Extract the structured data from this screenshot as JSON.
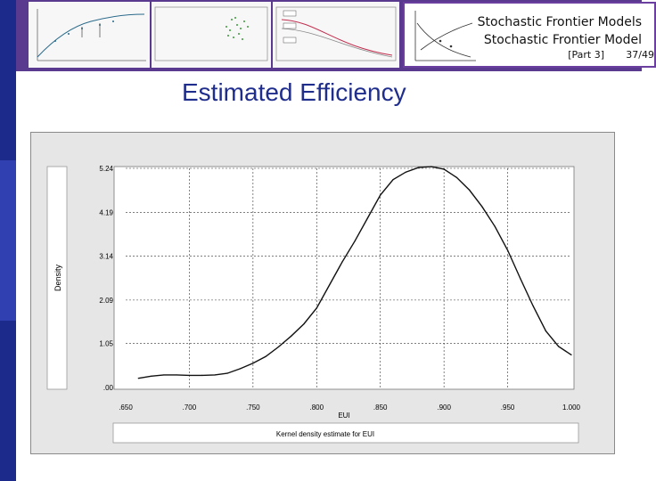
{
  "header": {
    "title_line1": "Stochastic Frontier Models",
    "title_line2": "Stochastic Frontier Model",
    "part": "[Part 3]",
    "page": "37/49"
  },
  "slide_title": "Estimated Efficiency",
  "colors": {
    "accent": "#1f2d8c",
    "bar": "#1c2a8c",
    "frame": "#5a3a8e"
  },
  "chart_data": {
    "type": "line",
    "xlabel": "EUI",
    "ylabel": "Density",
    "x_tick_labels": [
      ".650",
      ".700",
      ".750",
      ".800",
      ".850",
      ".900",
      ".950",
      "1.000"
    ],
    "y_tick_labels": [
      ".00",
      "1.05",
      "2.09",
      "3.14",
      "4.19",
      "5.24"
    ],
    "x_ticks": [
      0.65,
      0.7,
      0.75,
      0.8,
      0.85,
      0.9,
      0.95,
      1.0
    ],
    "y_ticks": [
      0,
      1.05,
      2.09,
      3.14,
      4.19,
      5.24
    ],
    "xlim": [
      0.65,
      1.0
    ],
    "ylim": [
      0,
      5.24
    ],
    "grid": true,
    "caption": "Kernel density estimate for EUI",
    "series": [
      {
        "x": [
          0.66,
          0.67,
          0.68,
          0.69,
          0.7,
          0.71,
          0.72,
          0.73,
          0.74,
          0.75,
          0.76,
          0.77,
          0.78,
          0.79,
          0.8,
          0.81,
          0.82,
          0.83,
          0.84,
          0.85,
          0.86,
          0.87,
          0.88,
          0.89,
          0.9,
          0.91,
          0.92,
          0.93,
          0.94,
          0.95,
          0.96,
          0.97,
          0.98,
          0.99,
          1.0
        ],
        "y": [
          0.22,
          0.27,
          0.3,
          0.3,
          0.29,
          0.29,
          0.3,
          0.34,
          0.45,
          0.58,
          0.74,
          0.97,
          1.23,
          1.52,
          1.9,
          2.45,
          3.0,
          3.5,
          4.05,
          4.6,
          4.97,
          5.15,
          5.26,
          5.28,
          5.22,
          5.02,
          4.72,
          4.32,
          3.85,
          3.28,
          2.6,
          1.95,
          1.35,
          0.98,
          0.78
        ]
      }
    ]
  }
}
